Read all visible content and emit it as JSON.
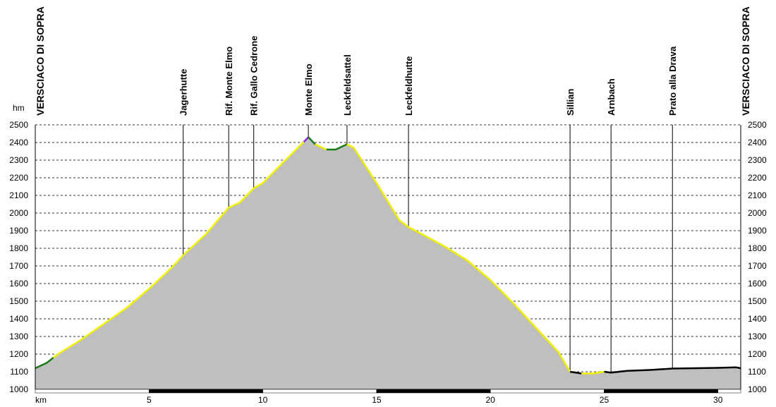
{
  "chart_data": {
    "type": "area",
    "y_unit": "hm",
    "x_unit": "km",
    "xlim": [
      0,
      31
    ],
    "ylim": [
      1000,
      2500
    ],
    "grid": true,
    "x_ticks": [
      5,
      10,
      15,
      20,
      25,
      30
    ],
    "y_ticks": [
      1000,
      1100,
      1200,
      1300,
      1400,
      1500,
      1600,
      1700,
      1800,
      1900,
      2000,
      2100,
      2200,
      2300,
      2400,
      2500
    ],
    "start_label": "VERSCIACO DI SOPRA",
    "end_label": "VERSCIACO DI SOPRA",
    "waypoints": [
      {
        "name": "Jagerhutte",
        "km": 6.5
      },
      {
        "name": "Rif. Monte Elmo",
        "km": 8.5
      },
      {
        "name": "Rif. Gallo Cedrone",
        "km": 9.6
      },
      {
        "name": "Monte Elmo",
        "km": 12.0
      },
      {
        "name": "Leckfeldsattel",
        "km": 13.7
      },
      {
        "name": "Leckfeldhutte",
        "km": 16.4
      },
      {
        "name": "Sillian",
        "km": 23.5
      },
      {
        "name": "Arnbach",
        "km": 25.3
      },
      {
        "name": "Prato alla Drava",
        "km": 28.0
      }
    ],
    "profile": [
      {
        "x": 0,
        "y": 1120
      },
      {
        "x": 0.5,
        "y": 1150
      },
      {
        "x": 1,
        "y": 1200
      },
      {
        "x": 2,
        "y": 1280
      },
      {
        "x": 3,
        "y": 1370
      },
      {
        "x": 4,
        "y": 1460
      },
      {
        "x": 5,
        "y": 1570
      },
      {
        "x": 6,
        "y": 1690
      },
      {
        "x": 6.5,
        "y": 1760
      },
      {
        "x": 7.5,
        "y": 1880
      },
      {
        "x": 8.5,
        "y": 2030
      },
      {
        "x": 9,
        "y": 2060
      },
      {
        "x": 9.6,
        "y": 2140
      },
      {
        "x": 10,
        "y": 2170
      },
      {
        "x": 11,
        "y": 2300
      },
      {
        "x": 11.7,
        "y": 2390
      },
      {
        "x": 12.0,
        "y": 2430
      },
      {
        "x": 12.3,
        "y": 2390
      },
      {
        "x": 12.8,
        "y": 2360
      },
      {
        "x": 13.2,
        "y": 2360
      },
      {
        "x": 13.7,
        "y": 2390
      },
      {
        "x": 14,
        "y": 2370
      },
      {
        "x": 15,
        "y": 2170
      },
      {
        "x": 16,
        "y": 1960
      },
      {
        "x": 16.4,
        "y": 1920
      },
      {
        "x": 17,
        "y": 1880
      },
      {
        "x": 18,
        "y": 1810
      },
      {
        "x": 19,
        "y": 1730
      },
      {
        "x": 20,
        "y": 1620
      },
      {
        "x": 21,
        "y": 1490
      },
      {
        "x": 22,
        "y": 1350
      },
      {
        "x": 23,
        "y": 1210
      },
      {
        "x": 23.5,
        "y": 1100
      },
      {
        "x": 24,
        "y": 1090
      },
      {
        "x": 24.5,
        "y": 1090
      },
      {
        "x": 25,
        "y": 1100
      },
      {
        "x": 25.3,
        "y": 1095
      },
      {
        "x": 26,
        "y": 1105
      },
      {
        "x": 27,
        "y": 1110
      },
      {
        "x": 28,
        "y": 1118
      },
      {
        "x": 29,
        "y": 1120
      },
      {
        "x": 30,
        "y": 1122
      },
      {
        "x": 30.8,
        "y": 1125
      },
      {
        "x": 31,
        "y": 1120
      }
    ],
    "segments": [
      {
        "from": 0,
        "to": 0.8,
        "color": "#1b7a1b"
      },
      {
        "from": 0.8,
        "to": 11.8,
        "color": "#f0f000"
      },
      {
        "from": 11.8,
        "to": 12.0,
        "color": "#8a2be2"
      },
      {
        "from": 12.0,
        "to": 12.3,
        "color": "#1b7a1b"
      },
      {
        "from": 12.3,
        "to": 12.8,
        "color": "#f0f000"
      },
      {
        "from": 12.8,
        "to": 13.7,
        "color": "#1b7a1b"
      },
      {
        "from": 13.7,
        "to": 23.5,
        "color": "#f0f000"
      },
      {
        "from": 23.5,
        "to": 24.0,
        "color": "#000000"
      },
      {
        "from": 24.0,
        "to": 25.0,
        "color": "#f0f000"
      },
      {
        "from": 25.0,
        "to": 31,
        "color": "#000000"
      }
    ],
    "fill_color": "#bfbfbf"
  }
}
